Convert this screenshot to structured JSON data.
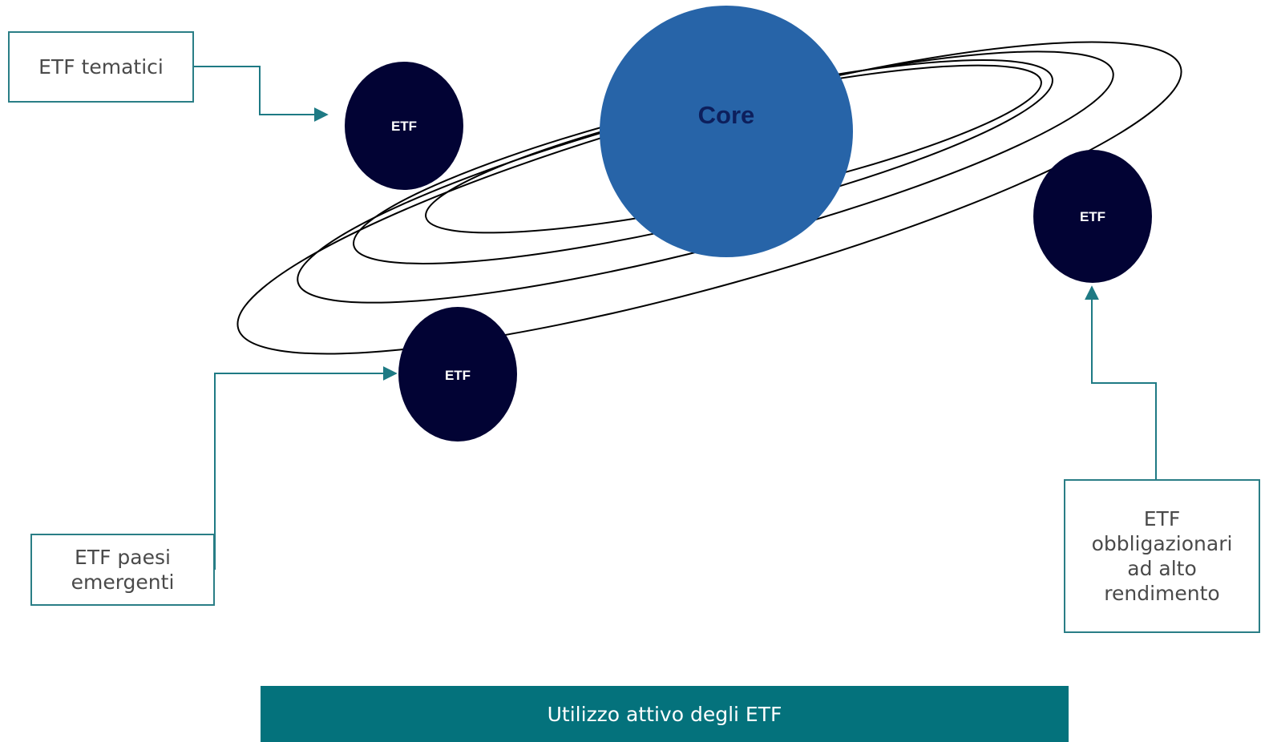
{
  "diagram": {
    "core": {
      "label": "Core",
      "color": "#2764a8",
      "text_color": "#0d1f5c"
    },
    "satellites": [
      {
        "id": "thematic",
        "label": "ETF",
        "color": "#020334"
      },
      {
        "id": "bonds",
        "label": "ETF",
        "color": "#020334"
      },
      {
        "id": "emerging",
        "label": "ETF",
        "color": "#020334"
      }
    ],
    "callouts": {
      "thematic": "ETF tematici",
      "emerging": "ETF paesi\nemergenti",
      "bonds": "ETF\nobbligazionari\nad alto\nrendimento"
    },
    "connector_color": "#1e7a84"
  },
  "footer": {
    "text": "Utilizzo attivo degli ETF",
    "color": "#04727c"
  }
}
